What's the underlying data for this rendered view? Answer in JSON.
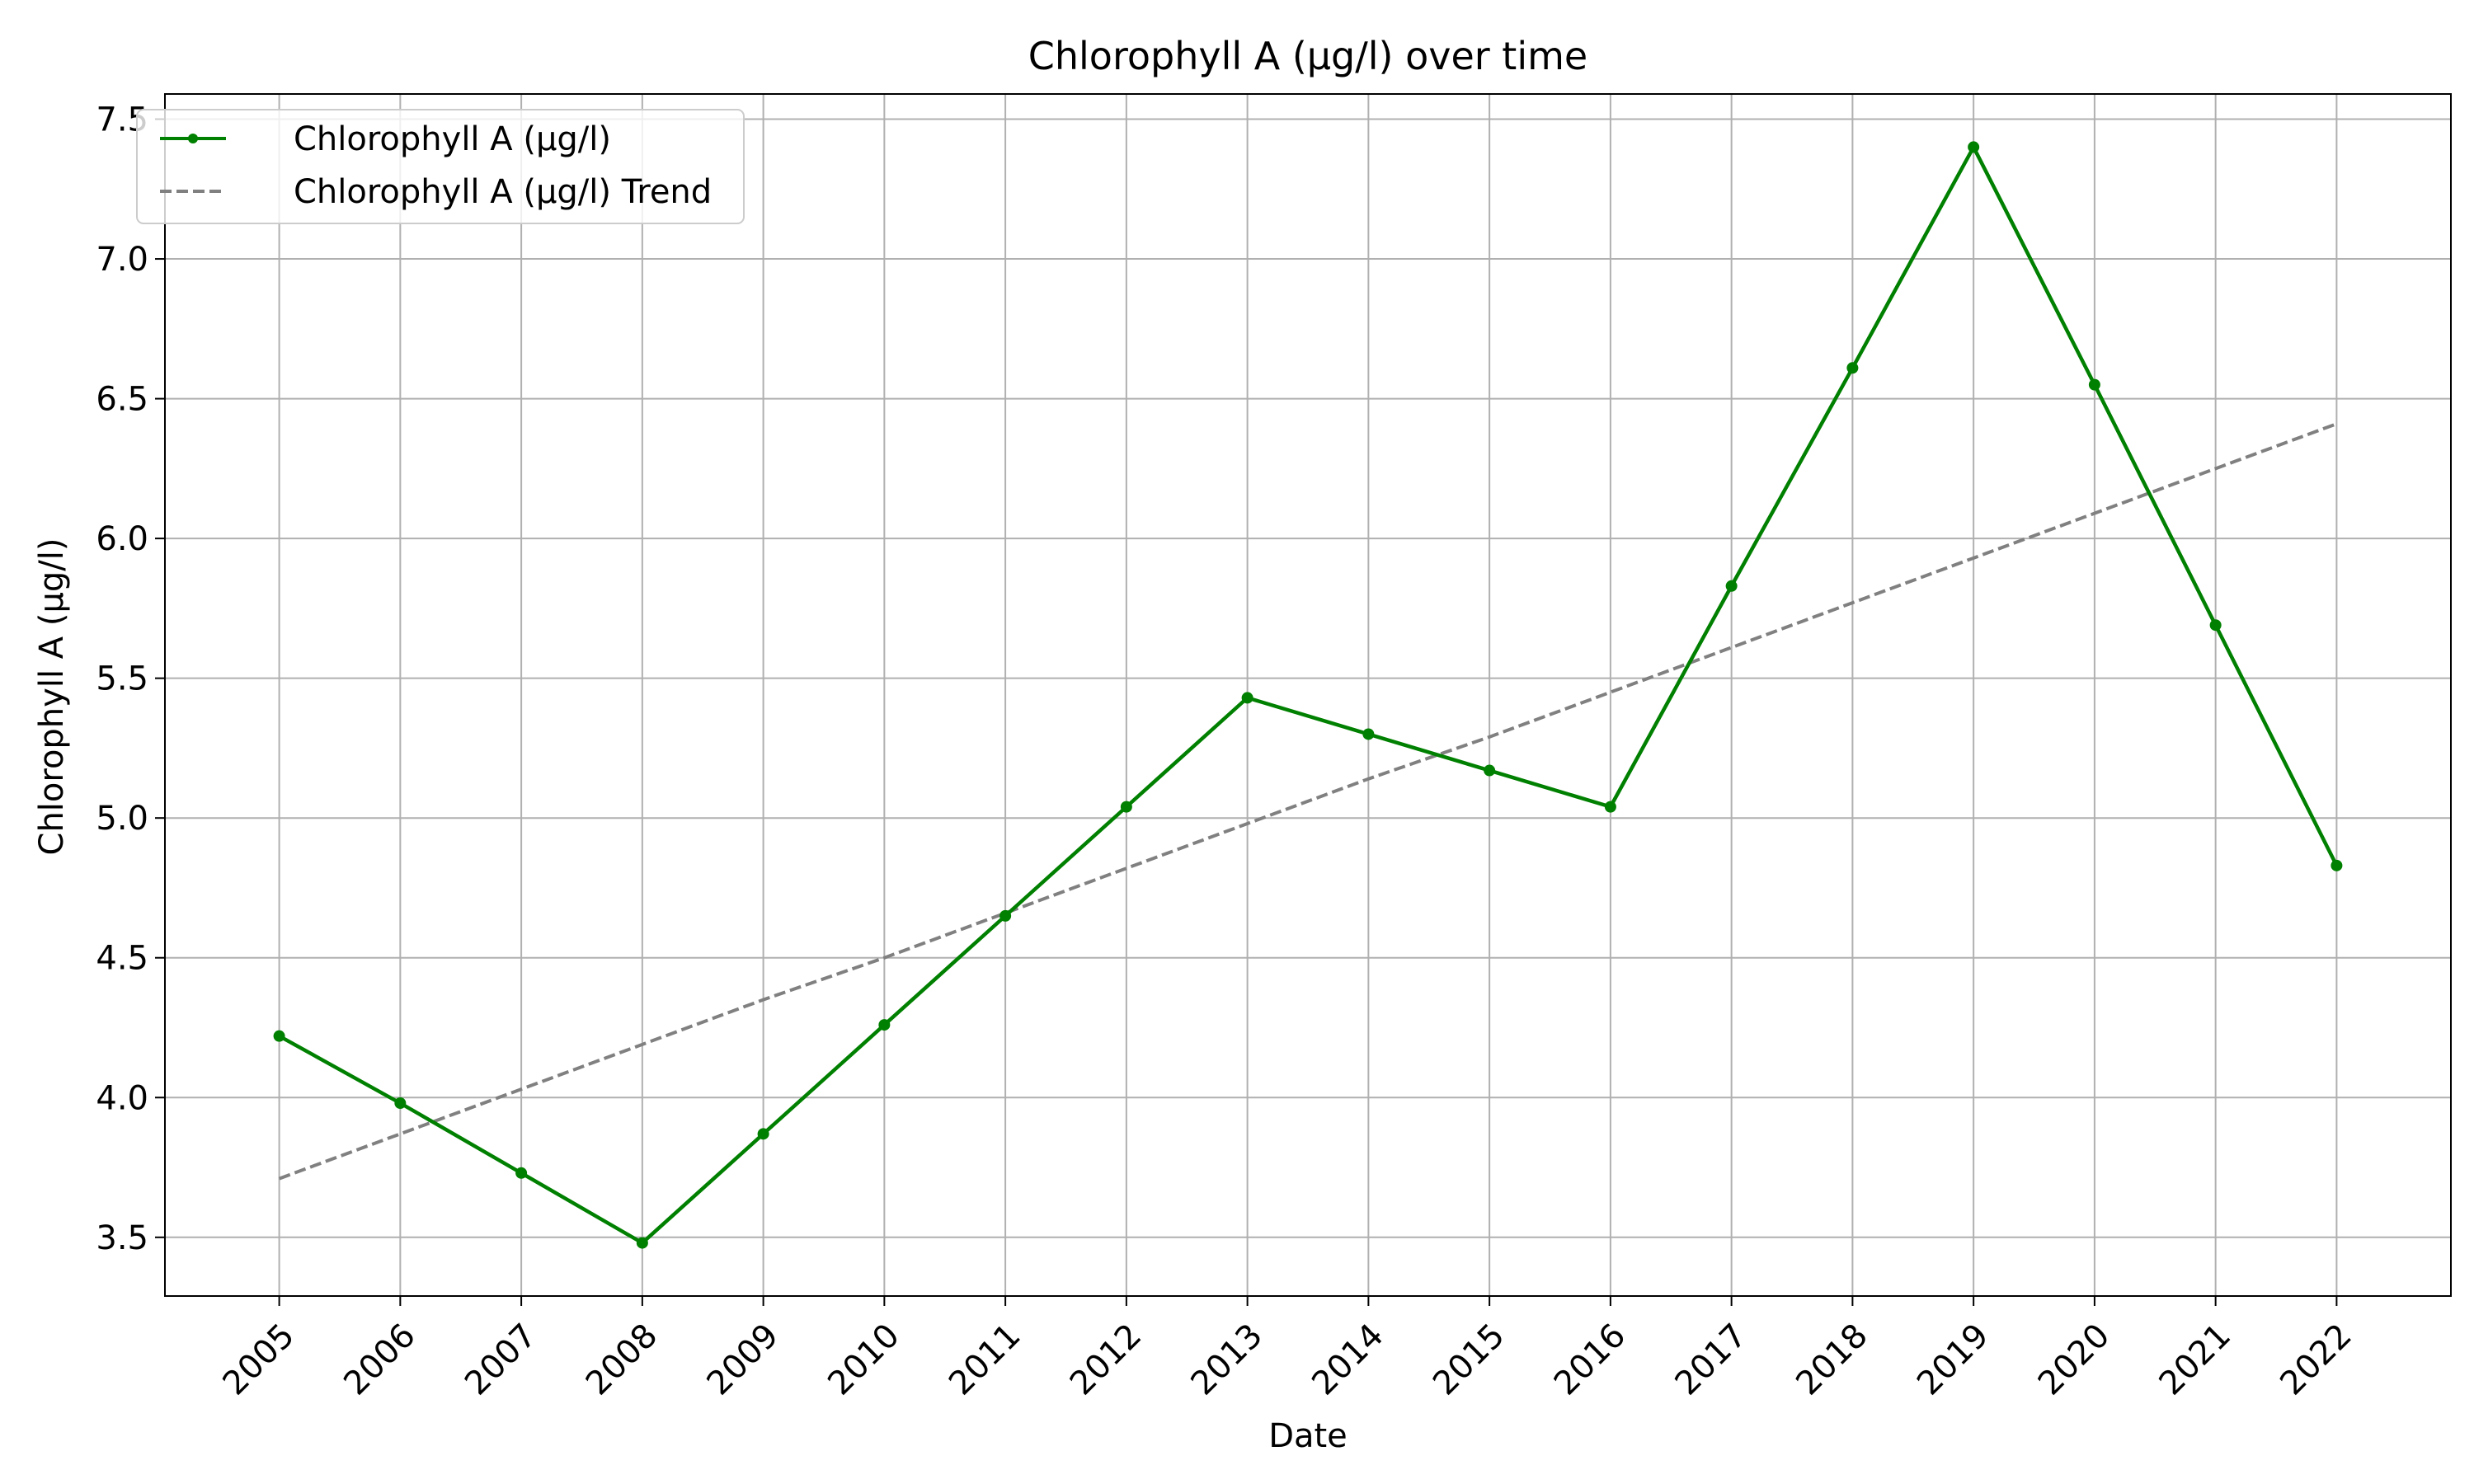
{
  "chart_data": {
    "type": "line",
    "title": "Chlorophyll A (µg/l) over time",
    "xlabel": "Date",
    "ylabel": "Chlorophyll A (µg/l)",
    "categories": [
      "2005",
      "2006",
      "2007",
      "2008",
      "2009",
      "2010",
      "2011",
      "2012",
      "2013",
      "2014",
      "2015",
      "2016",
      "2017",
      "2018",
      "2019",
      "2020",
      "2021",
      "2022"
    ],
    "series": [
      {
        "name": "Chlorophyll A (µg/l)",
        "style": "solid",
        "marker": "circle",
        "color": "#008000",
        "values": [
          4.22,
          3.98,
          3.73,
          3.48,
          3.87,
          4.26,
          4.65,
          5.04,
          5.43,
          5.3,
          5.17,
          5.04,
          5.83,
          6.61,
          7.4,
          6.55,
          5.69,
          4.83
        ]
      },
      {
        "name": "Chlorophyll A (µg/l) Trend",
        "style": "dashed",
        "marker": "none",
        "color": "#808080",
        "values": [
          3.71,
          3.87,
          4.03,
          4.19,
          4.35,
          4.5,
          4.66,
          4.82,
          4.98,
          5.14,
          5.29,
          5.45,
          5.61,
          5.77,
          5.93,
          6.09,
          6.25,
          6.41
        ]
      }
    ],
    "yticks": [
      "3.5",
      "4.0",
      "4.5",
      "5.0",
      "5.5",
      "6.0",
      "6.5",
      "7.0",
      "7.5"
    ],
    "ylim": [
      3.29,
      7.59
    ],
    "grid": true,
    "legend_position": "top-left",
    "grid_color": "#b0b0b0"
  }
}
